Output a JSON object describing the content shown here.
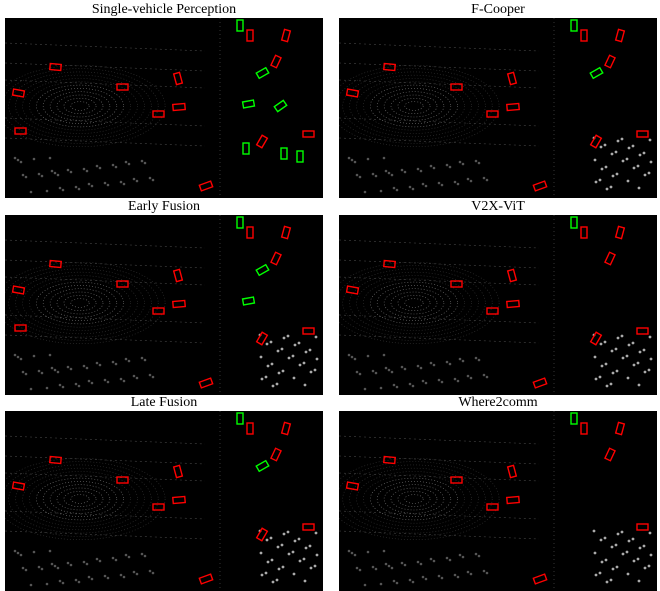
{
  "panels": [
    {
      "title": "Single-vehicle Perception"
    },
    {
      "title": "F-Cooper"
    },
    {
      "title": "Early Fusion"
    },
    {
      "title": "V2X-ViT"
    },
    {
      "title": "Late Fusion"
    },
    {
      "title": "Where2comm"
    }
  ]
}
